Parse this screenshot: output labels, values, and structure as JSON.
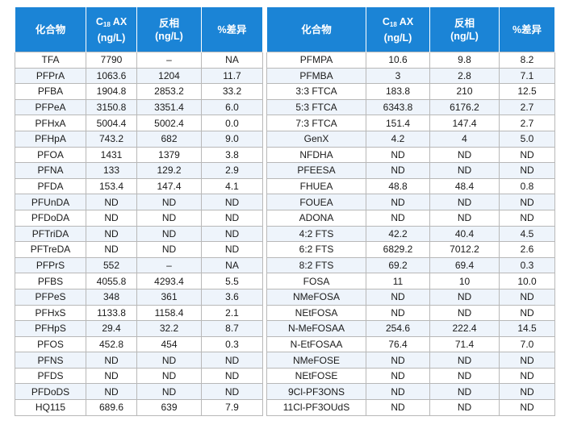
{
  "table": {
    "headers": {
      "compound": "化合物",
      "c18_ax_prefix": "C",
      "c18_ax_sub": "18",
      "c18_ax_suffix": " AX",
      "unit": "(ng/L)",
      "reversed_phase": "反相",
      "percent_diff": "%差异"
    },
    "left_rows": [
      [
        "TFA",
        "7790",
        "–",
        "NA"
      ],
      [
        "PFPrA",
        "1063.6",
        "1204",
        "11.7"
      ],
      [
        "PFBA",
        "1904.8",
        "2853.2",
        "33.2"
      ],
      [
        "PFPeA",
        "3150.8",
        "3351.4",
        "6.0"
      ],
      [
        "PFHxA",
        "5004.4",
        "5002.4",
        "0.0"
      ],
      [
        "PFHpA",
        "743.2",
        "682",
        "9.0"
      ],
      [
        "PFOA",
        "1431",
        "1379",
        "3.8"
      ],
      [
        "PFNA",
        "133",
        "129.2",
        "2.9"
      ],
      [
        "PFDA",
        "153.4",
        "147.4",
        "4.1"
      ],
      [
        "PFUnDA",
        "ND",
        "ND",
        "ND"
      ],
      [
        "PFDoDA",
        "ND",
        "ND",
        "ND"
      ],
      [
        "PFTriDA",
        "ND",
        "ND",
        "ND"
      ],
      [
        "PFTreDA",
        "ND",
        "ND",
        "ND"
      ],
      [
        "PFPrS",
        "552",
        "–",
        "NA"
      ],
      [
        "PFBS",
        "4055.8",
        "4293.4",
        "5.5"
      ],
      [
        "PFPeS",
        "348",
        "361",
        "3.6"
      ],
      [
        "PFHxS",
        "1133.8",
        "1158.4",
        "2.1"
      ],
      [
        "PFHpS",
        "29.4",
        "32.2",
        "8.7"
      ],
      [
        "PFOS",
        "452.8",
        "454",
        "0.3"
      ],
      [
        "PFNS",
        "ND",
        "ND",
        "ND"
      ],
      [
        "PFDS",
        "ND",
        "ND",
        "ND"
      ],
      [
        "PFDoDS",
        "ND",
        "ND",
        "ND"
      ],
      [
        "HQ115",
        "689.6",
        "639",
        "7.9"
      ]
    ],
    "right_rows": [
      [
        "PFMPA",
        "10.6",
        "9.8",
        "8.2"
      ],
      [
        "PFMBA",
        "3",
        "2.8",
        "7.1"
      ],
      [
        "3:3 FTCA",
        "183.8",
        "210",
        "12.5"
      ],
      [
        "5:3 FTCA",
        "6343.8",
        "6176.2",
        "2.7"
      ],
      [
        "7:3 FTCA",
        "151.4",
        "147.4",
        "2.7"
      ],
      [
        "GenX",
        "4.2",
        "4",
        "5.0"
      ],
      [
        "NFDHA",
        "ND",
        "ND",
        "ND"
      ],
      [
        "PFEESA",
        "ND",
        "ND",
        "ND"
      ],
      [
        "FHUEA",
        "48.8",
        "48.4",
        "0.8"
      ],
      [
        "FOUEA",
        "ND",
        "ND",
        "ND"
      ],
      [
        "ADONA",
        "ND",
        "ND",
        "ND"
      ],
      [
        "4:2 FTS",
        "42.2",
        "40.4",
        "4.5"
      ],
      [
        "6:2 FTS",
        "6829.2",
        "7012.2",
        "2.6"
      ],
      [
        "8:2 FTS",
        "69.2",
        "69.4",
        "0.3"
      ],
      [
        "FOSA",
        "11",
        "10",
        "10.0"
      ],
      [
        "NMeFOSA",
        "ND",
        "ND",
        "ND"
      ],
      [
        "NEtFOSA",
        "ND",
        "ND",
        "ND"
      ],
      [
        "N-MeFOSAA",
        "254.6",
        "222.4",
        "14.5"
      ],
      [
        "N-EtFOSAA",
        "76.4",
        "71.4",
        "7.0"
      ],
      [
        "NMeFOSE",
        "ND",
        "ND",
        "ND"
      ],
      [
        "NEtFOSE",
        "ND",
        "ND",
        "ND"
      ],
      [
        "9Cl-PF3ONS",
        "ND",
        "ND",
        "ND"
      ],
      [
        "11Cl-PF3OUdS",
        "ND",
        "ND",
        "ND"
      ]
    ]
  }
}
